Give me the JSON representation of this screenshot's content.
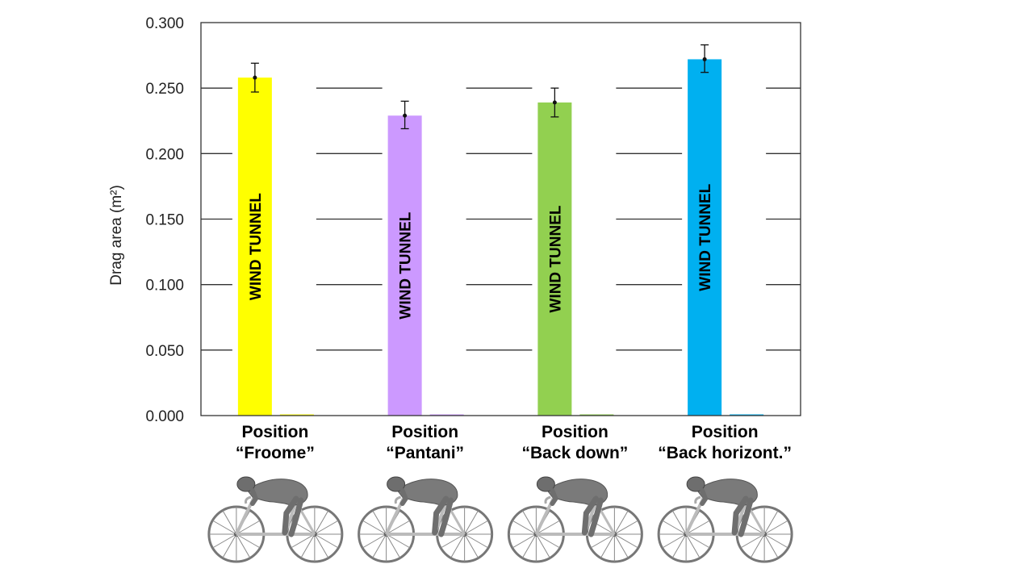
{
  "chart_data": {
    "type": "bar",
    "ylabel": "Drag area (m²)",
    "ylim": [
      0,
      0.3
    ],
    "yticks": [
      "0.000",
      "0.050",
      "0.100",
      "0.150",
      "0.200",
      "0.250",
      "0.300"
    ],
    "grid": true,
    "categories": [
      {
        "line1": "Position",
        "line2": "“Froome”"
      },
      {
        "line1": "Position",
        "line2": "“Pantani”"
      },
      {
        "line1": "Position",
        "line2": "“Back down”"
      },
      {
        "line1": "Position",
        "line2": "“Back horizont.”"
      }
    ],
    "series": [
      {
        "name": "WIND TUNNEL",
        "values": [
          0.258,
          0.229,
          0.239,
          0.272
        ],
        "error_low": [
          0.247,
          0.219,
          0.228,
          0.262
        ],
        "error_high": [
          0.269,
          0.24,
          0.25,
          0.283
        ],
        "colors": [
          "#ffff00",
          "#cc99ff",
          "#92d050",
          "#00b0f0"
        ],
        "bar_labels": [
          "WIND TUNNEL",
          "WIND TUNNEL",
          "WIND TUNNEL",
          "WIND TUNNEL"
        ]
      },
      {
        "values": [
          0,
          0,
          0,
          0
        ],
        "colors": [
          "#ffff00",
          "#cc99ff",
          "#92d050",
          "#00b0f0"
        ]
      }
    ]
  },
  "illustrations": {
    "icon": "cyclist-on-bicycle-icon",
    "count": 4
  }
}
